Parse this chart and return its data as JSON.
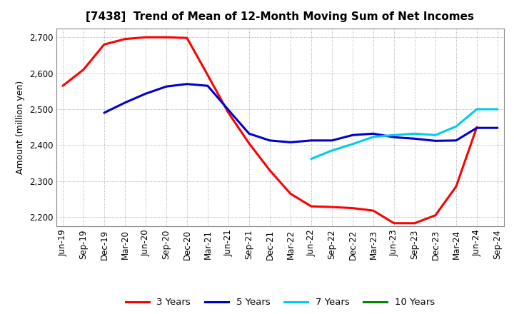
{
  "title": "[7438]  Trend of Mean of 12-Month Moving Sum of Net Incomes",
  "ylabel": "Amount (million yen)",
  "ylim": [
    2175,
    2725
  ],
  "yticks": [
    2200,
    2300,
    2400,
    2500,
    2600,
    2700
  ],
  "background_color": "#ffffff",
  "plot_bg_color": "#ffffff",
  "grid_color": "#999999",
  "x_labels": [
    "Jun-19",
    "Sep-19",
    "Dec-19",
    "Mar-20",
    "Jun-20",
    "Sep-20",
    "Dec-20",
    "Mar-21",
    "Jun-21",
    "Sep-21",
    "Dec-21",
    "Mar-22",
    "Jun-22",
    "Sep-22",
    "Dec-22",
    "Mar-23",
    "Jun-23",
    "Sep-23",
    "Dec-23",
    "Mar-24",
    "Jun-24",
    "Sep-24"
  ],
  "series": {
    "3 Years": {
      "color": "#ff0000",
      "linewidth": 2.2,
      "data_x": [
        0,
        1,
        2,
        3,
        4,
        5,
        6,
        7,
        8,
        9,
        10,
        11,
        12,
        13,
        14,
        15,
        16,
        17,
        18,
        19,
        20
      ],
      "data_y": [
        2565,
        2610,
        2680,
        2695,
        2700,
        2700,
        2698,
        2595,
        2490,
        2405,
        2330,
        2265,
        2230,
        2228,
        2225,
        2218,
        2183,
        2183,
        2205,
        2285,
        2450
      ]
    },
    "5 Years": {
      "color": "#0000cc",
      "linewidth": 2.2,
      "data_x": [
        2,
        3,
        4,
        5,
        6,
        7,
        8,
        9,
        10,
        11,
        12,
        13,
        14,
        15,
        16,
        17,
        18,
        19,
        20,
        21
      ],
      "data_y": [
        2490,
        2518,
        2543,
        2563,
        2570,
        2565,
        2498,
        2432,
        2413,
        2408,
        2413,
        2413,
        2428,
        2432,
        2422,
        2418,
        2412,
        2413,
        2448,
        2448
      ]
    },
    "7 Years": {
      "color": "#00ccee",
      "linewidth": 2.2,
      "data_x": [
        12,
        13,
        14,
        15,
        16,
        17,
        18,
        19,
        20,
        21
      ],
      "data_y": [
        2362,
        2385,
        2403,
        2423,
        2428,
        2432,
        2428,
        2452,
        2500,
        2500
      ]
    },
    "10 Years": {
      "color": "#008800",
      "linewidth": 2.2,
      "data_x": [],
      "data_y": []
    }
  },
  "legend_items": [
    "3 Years",
    "5 Years",
    "7 Years",
    "10 Years"
  ],
  "legend_colors": [
    "#ff0000",
    "#0000cc",
    "#00ccee",
    "#008800"
  ],
  "title_fontsize": 11,
  "ylabel_fontsize": 9,
  "tick_fontsize": 8.5
}
